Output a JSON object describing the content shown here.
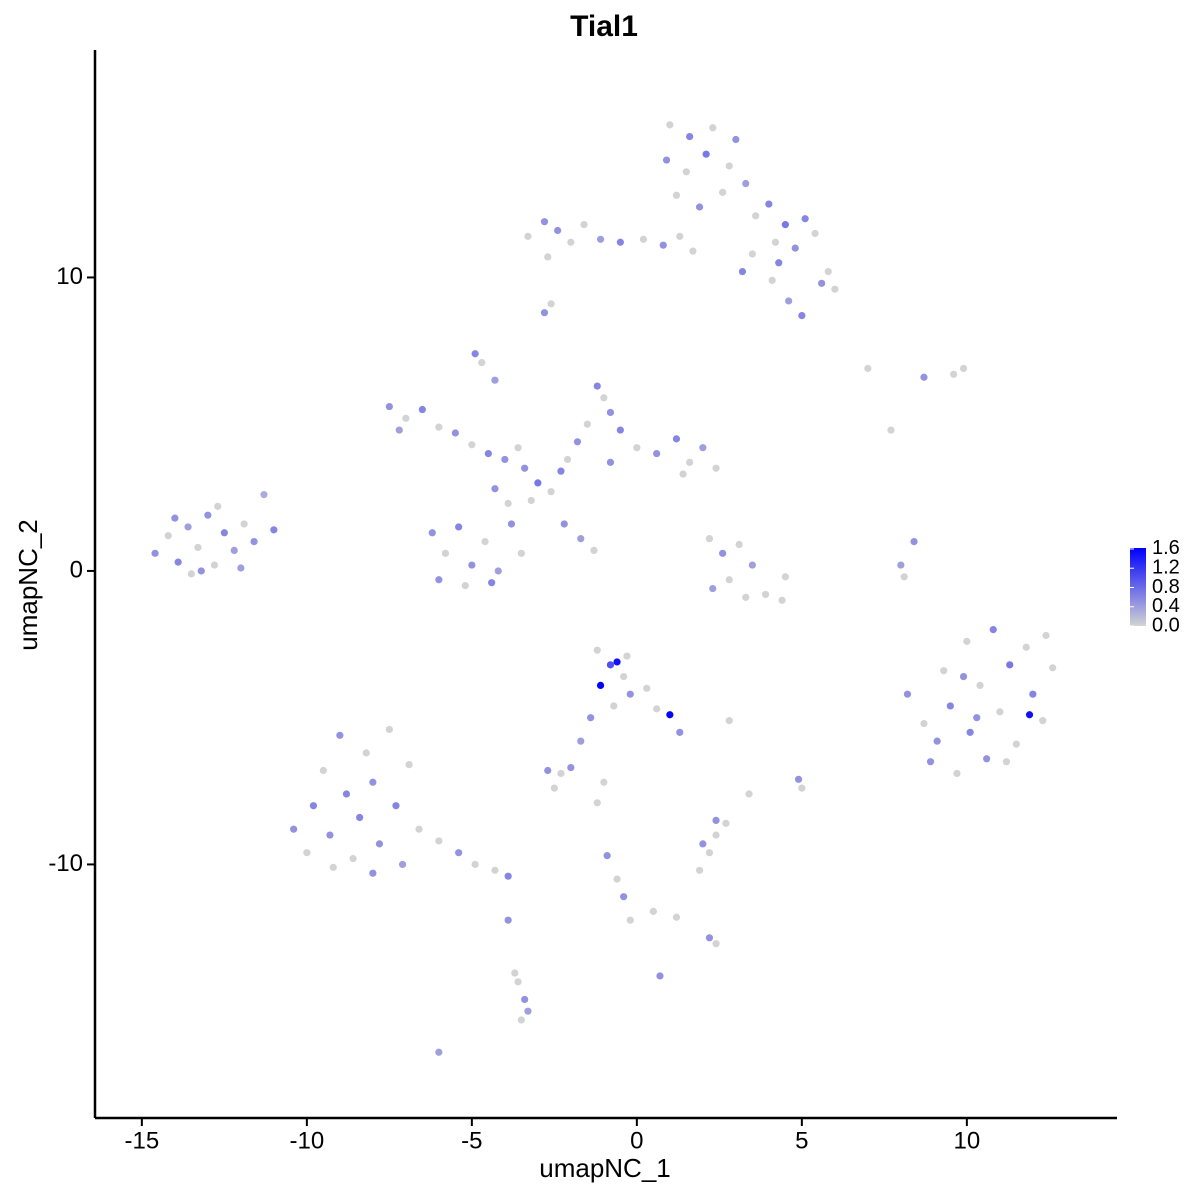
{
  "chart_data": {
    "type": "scatter",
    "title": "Tial1",
    "x_label": "umapNC_1",
    "y_label": "umapNC_2",
    "xlim": [
      -16.42,
      14.55
    ],
    "ylim": [
      -18.64,
      17.75
    ],
    "xticks": [
      -15,
      -10,
      -5,
      0,
      5,
      10
    ],
    "yticks": [
      -10,
      0,
      10
    ],
    "low_color": "#d3d3d3",
    "high_color": "#0000ff",
    "color_lim": [
      0,
      1.62
    ],
    "color_ticks": [
      {
        "value": 0,
        "label": "0.0"
      },
      {
        "value": 0.4,
        "label": "0.4"
      },
      {
        "value": 0.8,
        "label": "0.8"
      },
      {
        "value": 1.2,
        "label": "1.2"
      },
      {
        "value": 1.6,
        "label": "1.6"
      }
    ],
    "x": [
      -14.6,
      -14.2,
      -13.9,
      -13.6,
      -13.3,
      -13.0,
      -12.8,
      -12.5,
      -12.2,
      -11.9,
      -11.6,
      -11.3,
      -13.5,
      -12.0,
      -14.0,
      -11.0,
      -12.7,
      -13.2,
      1.0,
      1.6,
      2.3,
      3.0,
      0.9,
      1.5,
      2.1,
      2.8,
      3.3,
      1.2,
      1.9,
      2.6,
      3.6,
      4.0,
      4.5,
      5.1,
      5.4,
      4.8,
      4.2,
      3.5,
      3.2,
      4.1,
      4.6,
      5.0,
      5.6,
      6.0,
      5.8,
      4.3,
      -3.3,
      -2.8,
      -2.4,
      -2.0,
      -1.6,
      -1.1,
      -0.5,
      0.2,
      0.8,
      1.3,
      1.7,
      -2.7,
      -2.8,
      -2.6,
      -3.0,
      -2.6,
      -3.4,
      -2.3,
      -3.2,
      -7.5,
      -7.0,
      -6.5,
      -6.0,
      -5.5,
      -7.2,
      -5.0,
      -4.5,
      -4.0,
      -3.6,
      -4.9,
      -4.7,
      -4.3,
      -1.2,
      -1.0,
      -0.8,
      -1.5,
      -0.5,
      -1.8,
      -2.1,
      0,
      0.6,
      1.2,
      1.6,
      2.0,
      2.4,
      1.4,
      -0.8,
      -6.2,
      -5.8,
      -5.4,
      -5.0,
      -4.6,
      -4.2,
      -3.8,
      -3.5,
      -6.0,
      -5.2,
      -4.4,
      -3.9,
      -4.3,
      -2.2,
      -1.7,
      -1.3,
      2.2,
      2.6,
      3.1,
      3.5,
      2.8,
      3.3,
      3.9,
      4.4,
      2.3,
      4.5,
      8.2,
      8.7,
      8.9,
      9.3,
      9.5,
      9.7,
      10.0,
      10.1,
      10.4,
      10.6,
      10.8,
      11.0,
      11.3,
      11.5,
      11.8,
      12.0,
      12.3,
      12.6,
      11.9,
      9.1,
      10.3,
      12.4,
      9.9,
      11.2,
      -10.4,
      -10.0,
      -9.8,
      -9.5,
      -9.3,
      -9.0,
      -8.8,
      -8.6,
      -8.4,
      -8.2,
      -8.0,
      -7.8,
      -7.5,
      -7.3,
      -7.1,
      -6.9,
      -6.6,
      -6.0,
      -5.4,
      -4.9,
      -4.3,
      -3.9,
      -9.2,
      -8.0,
      -1.2,
      -0.8,
      -1.1,
      -0.4,
      -0.2,
      0.3,
      0.6,
      1.0,
      1.3,
      -0.7,
      -0.3,
      -1.4,
      -1.7,
      -0.6,
      -2.7,
      -2.3,
      -2.0,
      -2.5,
      -1.0,
      2.0,
      2.4,
      2.7,
      2.2,
      2.4,
      3.4,
      -3.6,
      -3.4,
      -3.5,
      -3.3,
      -3.7,
      -0.6,
      -0.4,
      -0.2,
      0.5,
      1.2,
      2.2,
      2.4,
      0.7,
      4.9,
      5.0,
      8.0,
      8.4,
      8.1,
      -6.0,
      -3.9,
      -0.9,
      -1.2,
      2.8,
      7.0,
      8.7,
      9.6,
      9.9,
      7.7,
      1.9
    ],
    "y": [
      0.6,
      1.2,
      0.3,
      1.5,
      0.8,
      1.9,
      0.2,
      1.3,
      0.7,
      1.6,
      1.0,
      2.6,
      -0.1,
      0.1,
      1.8,
      1.4,
      2.2,
      0.0,
      15.2,
      14.8,
      15.1,
      14.7,
      14.0,
      13.6,
      14.2,
      13.8,
      13.2,
      12.8,
      12.4,
      12.9,
      12.1,
      12.5,
      11.8,
      12.0,
      11.5,
      11.0,
      11.2,
      10.8,
      10.2,
      9.9,
      9.2,
      8.7,
      9.8,
      9.6,
      10.2,
      10.5,
      11.4,
      11.9,
      11.6,
      11.2,
      11.8,
      11.3,
      11.2,
      11.3,
      11.1,
      11.4,
      10.9,
      10.7,
      8.8,
      9.1,
      3.0,
      2.7,
      3.5,
      3.4,
      2.4,
      5.6,
      5.2,
      5.5,
      4.9,
      4.7,
      4.8,
      4.3,
      4.0,
      3.8,
      4.2,
      7.4,
      7.1,
      6.5,
      6.3,
      5.9,
      5.4,
      5.0,
      4.8,
      4.4,
      3.8,
      4.2,
      4.0,
      4.5,
      3.7,
      4.2,
      3.5,
      3.3,
      3.7,
      1.3,
      0.6,
      1.5,
      0.2,
      1.0,
      0.0,
      1.6,
      0.6,
      -0.3,
      -0.5,
      -0.4,
      2.3,
      2.8,
      1.6,
      1.1,
      0.7,
      1.1,
      0.6,
      0.9,
      0.2,
      -0.3,
      -0.9,
      -0.8,
      -1.0,
      -0.6,
      -0.2,
      -4.2,
      -5.2,
      -6.5,
      -3.4,
      -4.6,
      -6.9,
      -2.4,
      -5.5,
      -3.9,
      -6.4,
      -2.0,
      -4.8,
      -3.2,
      -5.9,
      -2.6,
      -4.2,
      -5.1,
      -3.3,
      -4.9,
      -5.8,
      -5.0,
      -2.2,
      -3.6,
      -6.5,
      -8.8,
      -9.6,
      -8.0,
      -6.8,
      -9.0,
      -5.6,
      -7.6,
      -9.8,
      -8.4,
      -6.2,
      -7.2,
      -9.3,
      -5.4,
      -8.0,
      -10.0,
      -6.6,
      -8.8,
      -9.2,
      -9.6,
      -10.0,
      -10.2,
      -10.4,
      -10.1,
      -10.3,
      -2.7,
      -3.2,
      -3.9,
      -3.6,
      -4.2,
      -4.0,
      -4.7,
      -4.9,
      -5.5,
      -4.6,
      -2.9,
      -5.0,
      -5.8,
      -3.1,
      -6.8,
      -6.9,
      -6.7,
      -7.4,
      -7.2,
      -9.3,
      -9.0,
      -8.6,
      -9.6,
      -8.5,
      -7.6,
      -14.0,
      -14.6,
      -15.3,
      -15.0,
      -13.7,
      -10.5,
      -11.1,
      -11.9,
      -11.6,
      -11.8,
      -12.5,
      -12.7,
      -13.8,
      -7.1,
      -7.4,
      0.2,
      1.0,
      -0.2,
      -16.4,
      -11.9,
      -9.7,
      -7.9,
      -5.1,
      6.9,
      6.6,
      6.7,
      6.9,
      4.8,
      -10.2
    ],
    "expression": [
      0.5,
      0,
      0.6,
      0.4,
      0,
      0.5,
      0,
      0.6,
      0.4,
      0,
      0.5,
      0.3,
      0,
      0.4,
      0.5,
      0.6,
      0,
      0.5,
      0,
      0.6,
      0,
      0.5,
      0.5,
      0,
      0.7,
      0,
      0.4,
      0,
      0.5,
      0,
      0,
      0.6,
      0.7,
      0.6,
      0,
      0.5,
      0,
      0,
      0.6,
      0,
      0.4,
      0.6,
      0.5,
      0,
      0,
      0.6,
      0,
      0.5,
      0.5,
      0,
      0,
      0.4,
      0.6,
      0,
      0.5,
      0,
      0,
      0,
      0.5,
      0,
      0.7,
      0,
      0.5,
      0.6,
      0,
      0.5,
      0,
      0.6,
      0,
      0.5,
      0.4,
      0,
      0.6,
      0.5,
      0,
      0.6,
      0,
      0.4,
      0.6,
      0,
      0.5,
      0,
      0.6,
      0.5,
      0,
      0,
      0.5,
      0.6,
      0,
      0.4,
      0,
      0,
      0.5,
      0.5,
      0,
      0.6,
      0.5,
      0,
      0.4,
      0.5,
      0,
      0.5,
      0,
      0.6,
      0,
      0.5,
      0.5,
      0.4,
      0,
      0,
      0.5,
      0,
      0.4,
      0,
      0,
      0,
      0,
      0.4,
      0,
      0.5,
      0,
      0.5,
      0,
      0.6,
      0,
      0,
      0.6,
      0,
      0.5,
      0.6,
      0,
      0.7,
      0,
      0,
      0.6,
      0,
      0,
      1.5,
      0.5,
      0.5,
      0,
      0.5,
      0,
      0.5,
      0,
      0.6,
      0,
      0.5,
      0.5,
      0.6,
      0,
      0.6,
      0,
      0.5,
      0.5,
      0,
      0.6,
      0.4,
      0,
      0,
      0,
      0.5,
      0,
      0,
      0.6,
      0,
      0.5,
      0,
      1.0,
      1.6,
      0,
      0.5,
      0,
      0,
      1.6,
      0.5,
      0,
      0,
      0.5,
      0.4,
      1.5,
      0.5,
      0,
      0.5,
      0,
      0,
      0.5,
      0,
      0,
      0,
      0.5,
      0,
      0,
      0.5,
      0,
      0.4,
      0,
      0,
      0.5,
      0,
      0,
      0,
      0.5,
      0,
      0.5,
      0.5,
      0,
      0.4,
      0.5,
      0,
      0.4,
      0.5,
      0.5,
      0,
      0,
      0,
      0.5,
      0,
      0,
      0,
      0
    ]
  }
}
